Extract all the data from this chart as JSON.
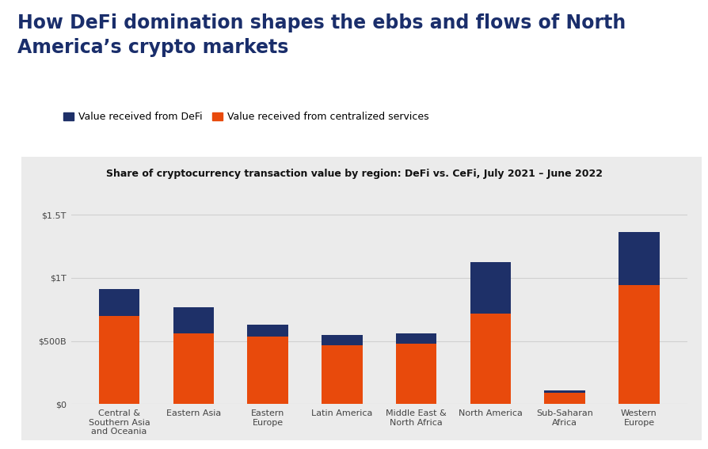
{
  "title_main": "How DeFi domination shapes the ebbs and flows of North\nAmerica’s crypto markets",
  "chart_title": "Share of cryptocurrency transaction value by region: DeFi vs. CeFi, July 2021 – June 2022",
  "legend_defi": "Value received from DeFi",
  "legend_cefi": "Value received from centralized services",
  "categories": [
    "Central &\nSouthern Asia\nand Oceania",
    "Eastern Asia",
    "Eastern\nEurope",
    "Latin America",
    "Middle East &\nNorth Africa",
    "North America",
    "Sub-Saharan\nAfrica",
    "Western\nEurope"
  ],
  "cefi_values": [
    700,
    560,
    535,
    468,
    480,
    718,
    88,
    940
  ],
  "defi_values": [
    210,
    205,
    92,
    82,
    82,
    405,
    22,
    420
  ],
  "color_defi": "#1e3068",
  "color_cefi": "#e84a0c",
  "background_chart": "#ebebeb",
  "background_main": "#ffffff",
  "ylabel_ticks": [
    "$0",
    "$500B",
    "$1T",
    "$1.5T"
  ],
  "ytick_values": [
    0,
    500,
    1000,
    1500
  ],
  "ylim": [
    0,
    1600
  ],
  "title_color": "#1a2e6b",
  "title_fontsize": 17,
  "subtitle_fontsize": 9,
  "tick_label_fontsize": 8,
  "legend_fontsize": 9,
  "bar_width": 0.55
}
